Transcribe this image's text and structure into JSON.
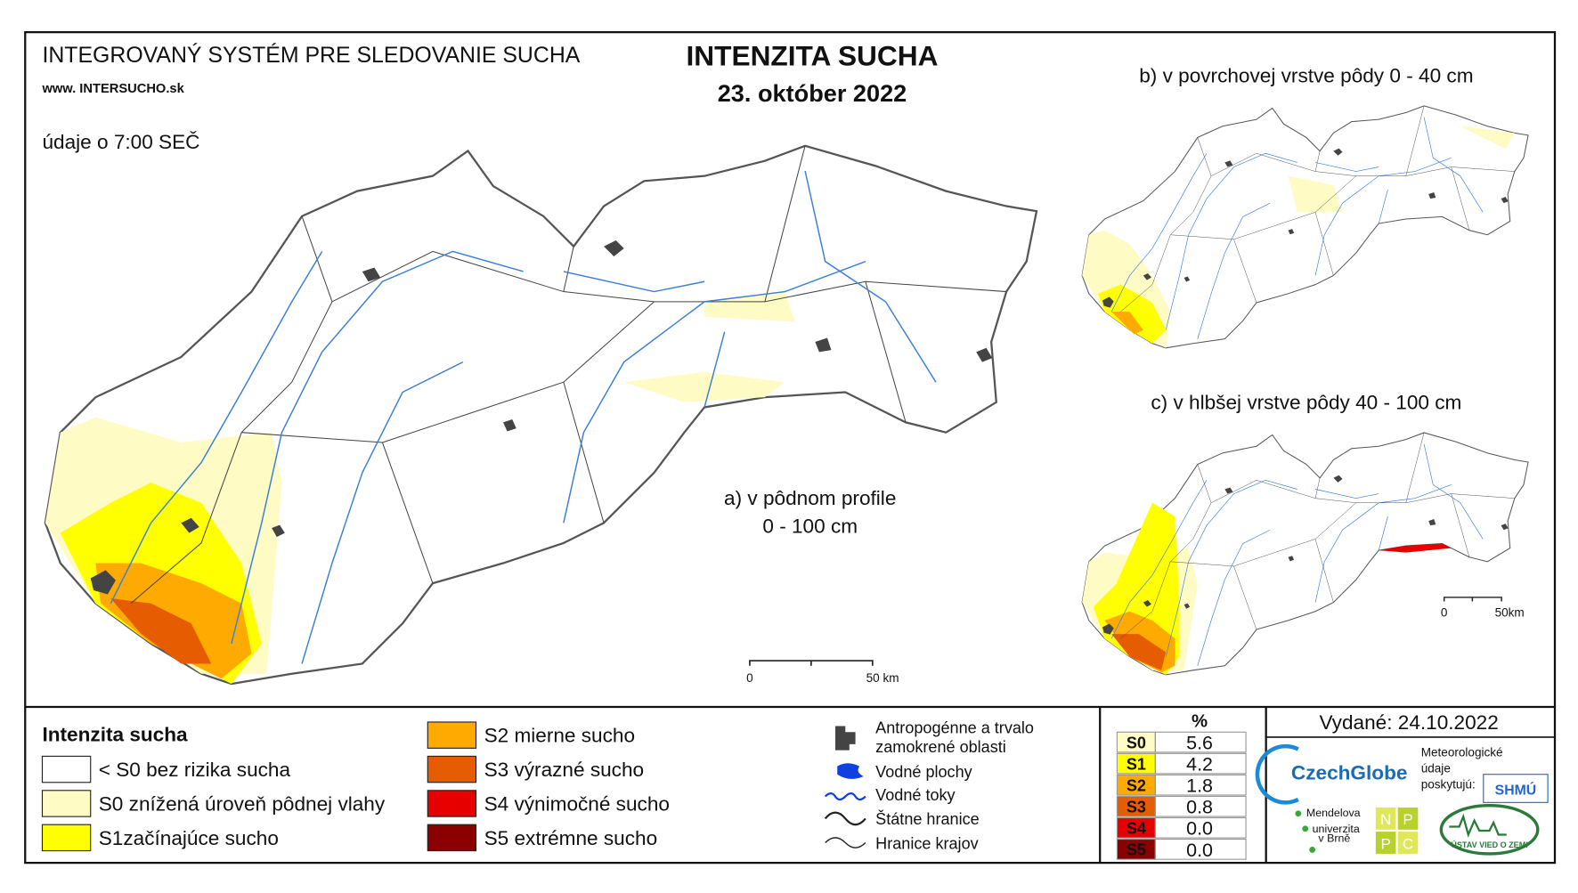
{
  "header": {
    "system_title": "INTEGROVANÝ SYSTÉM PRE SLEDOVANIE SUCHA",
    "website": "www. INTERSUCHO.sk",
    "time_note": "údaje o 7:00 SEČ",
    "title": "INTENZITA SUCHA",
    "date": "23. október 2022"
  },
  "maps": {
    "a": {
      "label": [
        "a) v pôdnom profile",
        "0 - 100 cm"
      ],
      "scale": [
        "0",
        "50 km"
      ]
    },
    "b": {
      "label": "b) v povrchovej vrstve pôdy 0 - 40 cm"
    },
    "c": {
      "label": "c) v hlbšej vrstve pôdy 40 - 100 cm",
      "scale": [
        "0",
        "50km"
      ]
    }
  },
  "legend": {
    "title": "Intenzita sucha",
    "items": [
      {
        "label": "< S0 bez rizika sucha",
        "color": "#ffffff"
      },
      {
        "label": "S0 znížená úroveň pôdnej vlahy",
        "color": "#fffbc4"
      },
      {
        "label": "S1začínajúce sucho",
        "color": "#ffff00"
      },
      {
        "label": "S2 mierne sucho",
        "color": "#ffaa00"
      },
      {
        "label": "S3 výrazné sucho",
        "color": "#e65c00"
      },
      {
        "label": "S4 výnimočné sucho",
        "color": "#e60000"
      },
      {
        "label": "S5 extrémne sucho",
        "color": "#8b0000"
      }
    ],
    "overlays": [
      "Antropogénne a trvalo",
      "zamokrené oblasti",
      "Vodné plochy",
      "Vodné toky",
      "Štátne hranice",
      "Hranice krajov"
    ]
  },
  "stats": {
    "header": "%",
    "rows": [
      {
        "class": "S0",
        "value": "5.6"
      },
      {
        "class": "S1",
        "value": "4.2"
      },
      {
        "class": "S2",
        "value": "1.8"
      },
      {
        "class": "S3",
        "value": "0.8"
      },
      {
        "class": "S4",
        "value": "0.0"
      },
      {
        "class": "S5",
        "value": "0.0"
      }
    ]
  },
  "issued": "Vydané: 24.10.2022",
  "logos": {
    "czechglobe": "CzechGlobe",
    "meteo": [
      "Meteorologické",
      "údaje",
      "poskytujú:"
    ],
    "shmu": "SHMÚ",
    "mendel": [
      "Mendelova",
      "univerzita",
      "v Brně"
    ],
    "npc": [
      "N",
      "P",
      "P",
      "C"
    ],
    "uvz": "ÚSTAV VIED O ZEMI"
  }
}
